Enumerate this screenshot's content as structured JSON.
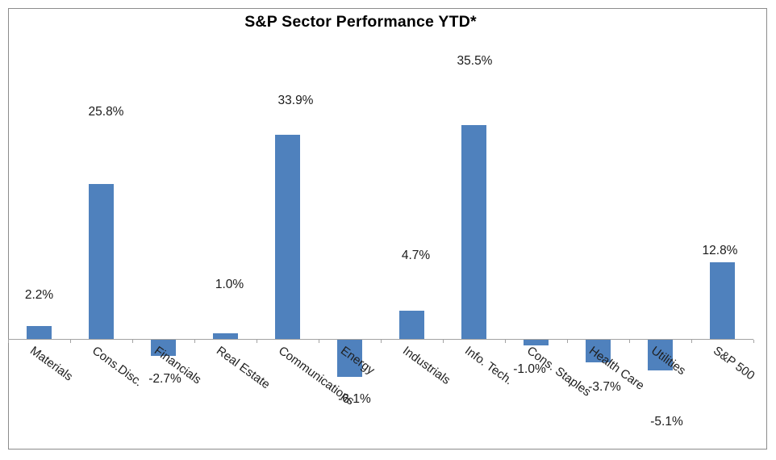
{
  "title": "S&P Sector Performance YTD*",
  "chart_data": {
    "type": "bar",
    "title": "S&P Sector Performance YTD*",
    "categories": [
      "Materials",
      "Cons.Disc.",
      "Financials",
      "Real Estate",
      "Communications",
      "Energy",
      "Industrials",
      "Info. Tech.",
      "Cons. Staples",
      "Health Care",
      "Utilities",
      "S&P 500"
    ],
    "values": [
      2.2,
      25.8,
      -2.7,
      1.0,
      33.9,
      -6.1,
      4.7,
      35.5,
      -1.0,
      -3.7,
      -5.1,
      12.8
    ],
    "data_labels": [
      "2.2%",
      "25.8%",
      "-2.7%",
      "1.0%",
      "33.9%",
      "-6.1%",
      "4.7%",
      "35.5%",
      "-1.0%",
      "-3.7%",
      "-5.1%",
      "12.8%"
    ],
    "xlabel": "",
    "ylabel": "",
    "ylim": [
      -8,
      40
    ],
    "grid": false,
    "legend": false,
    "bar_color": "#4f81bd",
    "axis_color": "#a3a3a3",
    "frame_border_color": "#8c8c8c",
    "label_color": "#1a1a1a",
    "category_label_rotation_deg": 36
  }
}
